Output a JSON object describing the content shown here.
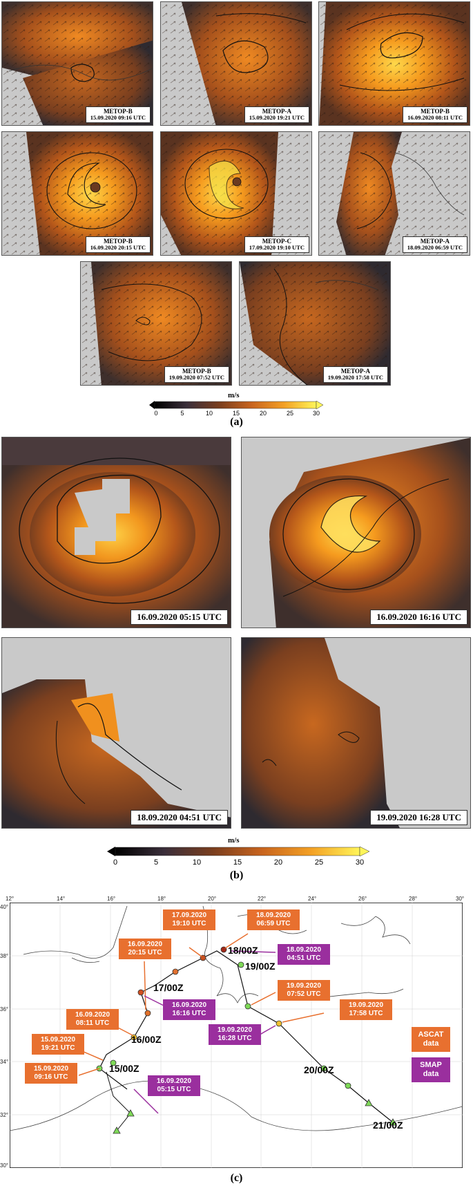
{
  "panel_a": {
    "caption": "(a)",
    "panels": [
      {
        "sat": "METOP-B",
        "time": "15.09.2020 09:16 UTC"
      },
      {
        "sat": "METOP-A",
        "time": "15.09.2020 19:21 UTC"
      },
      {
        "sat": "METOP-B",
        "time": "16.09.2020 08:11 UTC"
      },
      {
        "sat": "METOP-B",
        "time": "16.09.2020 20:15 UTC"
      },
      {
        "sat": "METOP-C",
        "time": "17.09.2020 19:10 UTC"
      },
      {
        "sat": "METOP-A",
        "time": "18.09.2020 06:59 UTC"
      },
      {
        "sat": "METOP-B",
        "time": "19.09.2020 07:52 UTC"
      },
      {
        "sat": "METOP-A",
        "time": "19.09.2020 17:58 UTC"
      }
    ],
    "colorbar": {
      "unit": "m/s",
      "ticks": [
        "0",
        "5",
        "10",
        "15",
        "20",
        "25",
        "30"
      ]
    }
  },
  "panel_b": {
    "caption": "(b)",
    "panels": [
      {
        "time": "16.09.2020 05:15 UTC"
      },
      {
        "time": "16.09.2020 16:16 UTC"
      },
      {
        "time": "18.09.2020 04:51 UTC"
      },
      {
        "time": "19.09.2020 16:28 UTC"
      }
    ],
    "colorbar": {
      "unit": "m/s",
      "ticks": [
        "0",
        "5",
        "10",
        "15",
        "20",
        "25",
        "30"
      ]
    }
  },
  "panel_c": {
    "caption": "(c)",
    "lon_ticks": [
      "12°",
      "14°",
      "16°",
      "18°",
      "20°",
      "22°",
      "24°",
      "26°",
      "28°",
      "30°"
    ],
    "lat_ticks": [
      "40°",
      "38°",
      "36°",
      "34°",
      "32°",
      "30°"
    ],
    "track_labels": [
      "15/00Z",
      "16/00Z",
      "17/00Z",
      "18/00Z",
      "19/00Z",
      "20/00Z",
      "21/00Z"
    ],
    "ascat_boxes": [
      {
        "d": "15.09.2020",
        "t": "09:16 UTC"
      },
      {
        "d": "15.09.2020",
        "t": "19:21 UTC"
      },
      {
        "d": "16.09.2020",
        "t": "08:11 UTC"
      },
      {
        "d": "16.09.2020",
        "t": "20:15 UTC"
      },
      {
        "d": "17.09.2020",
        "t": "19:10 UTC"
      },
      {
        "d": "18.09.2020",
        "t": "06:59 UTC"
      },
      {
        "d": "19.09.2020",
        "t": "07:52 UTC"
      },
      {
        "d": "19.09.2020",
        "t": "17:58 UTC"
      }
    ],
    "smap_boxes": [
      {
        "d": "16.09.2020",
        "t": "05:15 UTC"
      },
      {
        "d": "16.09.2020",
        "t": "16:16 UTC"
      },
      {
        "d": "18.09.2020",
        "t": "04:51 UTC"
      },
      {
        "d": "19.09.2020",
        "t": "16:28 UTC"
      }
    ],
    "legend": {
      "ascat_l1": "ASCAT",
      "ascat_l2": "data",
      "smap_l1": "SMAP",
      "smap_l2": "data"
    },
    "colors": {
      "ascat": "#e8702f",
      "smap": "#9a2f9e",
      "track": "#111111",
      "point": "#7ed957"
    }
  }
}
